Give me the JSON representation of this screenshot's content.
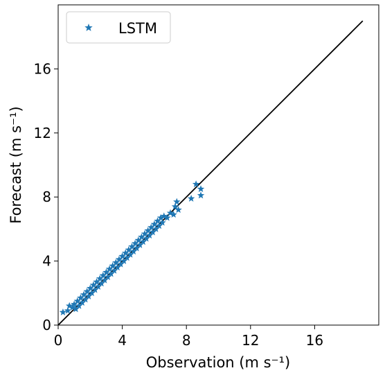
{
  "chart_data": {
    "type": "scatter",
    "title": "",
    "xlabel": "Observation (m s⁻¹)",
    "ylabel": "Forecast (m s⁻¹)",
    "xlim": [
      0,
      20
    ],
    "ylim": [
      0,
      20
    ],
    "xticks": [
      0,
      4,
      8,
      12,
      16
    ],
    "yticks": [
      0,
      4,
      8,
      12,
      16
    ],
    "grid": false,
    "legend_position": "top-left",
    "series": [
      {
        "name": "LSTM",
        "marker": "star",
        "color": "#1f77b4",
        "points": [
          [
            0.3,
            0.8
          ],
          [
            0.6,
            0.9
          ],
          [
            0.7,
            1.2
          ],
          [
            0.9,
            1.1
          ],
          [
            1.0,
            1.3
          ],
          [
            1.1,
            1.0
          ],
          [
            1.2,
            1.5
          ],
          [
            1.3,
            1.2
          ],
          [
            1.4,
            1.7
          ],
          [
            1.5,
            1.4
          ],
          [
            1.6,
            1.9
          ],
          [
            1.7,
            1.6
          ],
          [
            1.8,
            2.1
          ],
          [
            1.9,
            1.8
          ],
          [
            2.0,
            2.3
          ],
          [
            2.1,
            2.0
          ],
          [
            2.2,
            2.5
          ],
          [
            2.3,
            2.2
          ],
          [
            2.4,
            2.7
          ],
          [
            2.5,
            2.4
          ],
          [
            2.6,
            2.9
          ],
          [
            2.7,
            2.6
          ],
          [
            2.8,
            3.1
          ],
          [
            2.9,
            2.8
          ],
          [
            3.0,
            3.3
          ],
          [
            3.1,
            3.0
          ],
          [
            3.2,
            3.5
          ],
          [
            3.3,
            3.2
          ],
          [
            3.4,
            3.7
          ],
          [
            3.5,
            3.4
          ],
          [
            3.6,
            3.9
          ],
          [
            3.7,
            3.6
          ],
          [
            3.8,
            4.1
          ],
          [
            3.9,
            3.8
          ],
          [
            4.0,
            4.3
          ],
          [
            4.1,
            4.0
          ],
          [
            4.2,
            4.5
          ],
          [
            4.3,
            4.2
          ],
          [
            4.4,
            4.7
          ],
          [
            4.5,
            4.4
          ],
          [
            4.6,
            4.9
          ],
          [
            4.7,
            4.6
          ],
          [
            4.8,
            5.1
          ],
          [
            4.9,
            4.8
          ],
          [
            5.0,
            5.3
          ],
          [
            5.1,
            5.0
          ],
          [
            5.2,
            5.5
          ],
          [
            5.3,
            5.2
          ],
          [
            5.4,
            5.7
          ],
          [
            5.5,
            5.4
          ],
          [
            5.6,
            5.9
          ],
          [
            5.7,
            5.6
          ],
          [
            5.8,
            6.1
          ],
          [
            5.9,
            5.8
          ],
          [
            6.0,
            6.3
          ],
          [
            6.1,
            6.0
          ],
          [
            6.2,
            6.5
          ],
          [
            6.3,
            6.2
          ],
          [
            6.4,
            6.7
          ],
          [
            6.5,
            6.4
          ],
          [
            6.6,
            6.8
          ],
          [
            6.8,
            6.7
          ],
          [
            7.0,
            7.0
          ],
          [
            7.2,
            6.9
          ],
          [
            7.3,
            7.4
          ],
          [
            7.4,
            7.7
          ],
          [
            7.5,
            7.2
          ],
          [
            8.3,
            7.9
          ],
          [
            8.6,
            8.8
          ],
          [
            8.9,
            8.5
          ],
          [
            8.9,
            8.1
          ]
        ]
      }
    ],
    "reference_line": {
      "x": [
        0,
        19
      ],
      "y": [
        0,
        19
      ],
      "color": "#000000"
    }
  }
}
